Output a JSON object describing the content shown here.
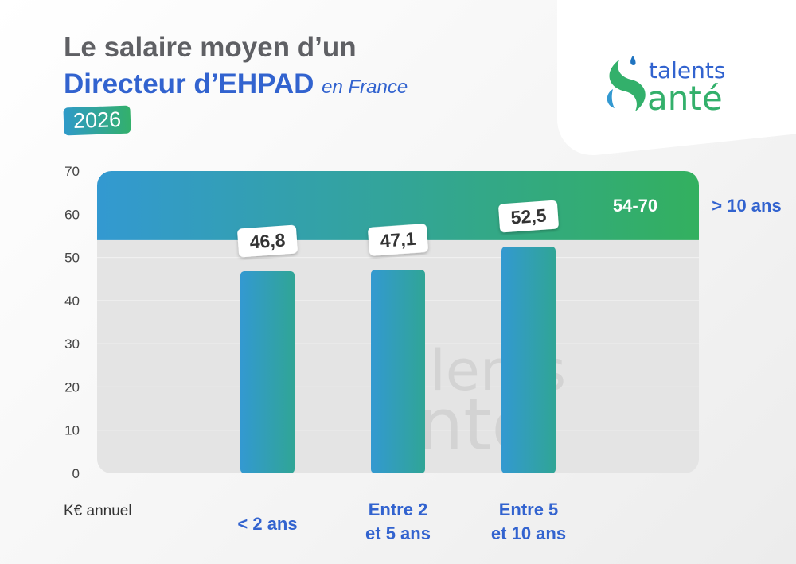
{
  "title_line1": "Le salaire moyen d’un",
  "title_line2": "Directeur d’EHPAD",
  "title_suffix": "en France",
  "year_badge": "2026",
  "logo": {
    "line1": "talents",
    "line2": "anté",
    "colors": {
      "blue": "#3263cf",
      "green": "#33b06b"
    }
  },
  "colors": {
    "bar_start": "#3399d1",
    "bar_end": "#30a596",
    "band_start": "#3399d1",
    "band_end": "#33b05f",
    "axis_text": "#444444",
    "category_text": "#3263cf",
    "plot_bg": "#e4e4e4"
  },
  "chart_data": {
    "type": "bar",
    "ylabel": "K€ annuel",
    "ylim": [
      0,
      70
    ],
    "yticks": [
      0,
      10,
      20,
      30,
      40,
      50,
      60,
      70
    ],
    "grid": true,
    "categories": [
      "< 2 ans",
      "Entre 2\net 5 ans",
      "Entre 5\net 10 ans"
    ],
    "values": [
      46.8,
      47.1,
      52.5
    ],
    "value_labels": [
      "46,8",
      "47,1",
      "52,5"
    ],
    "range_band": {
      "category": "> 10 ans",
      "min": 54,
      "max": 70,
      "label": "54-70"
    }
  }
}
